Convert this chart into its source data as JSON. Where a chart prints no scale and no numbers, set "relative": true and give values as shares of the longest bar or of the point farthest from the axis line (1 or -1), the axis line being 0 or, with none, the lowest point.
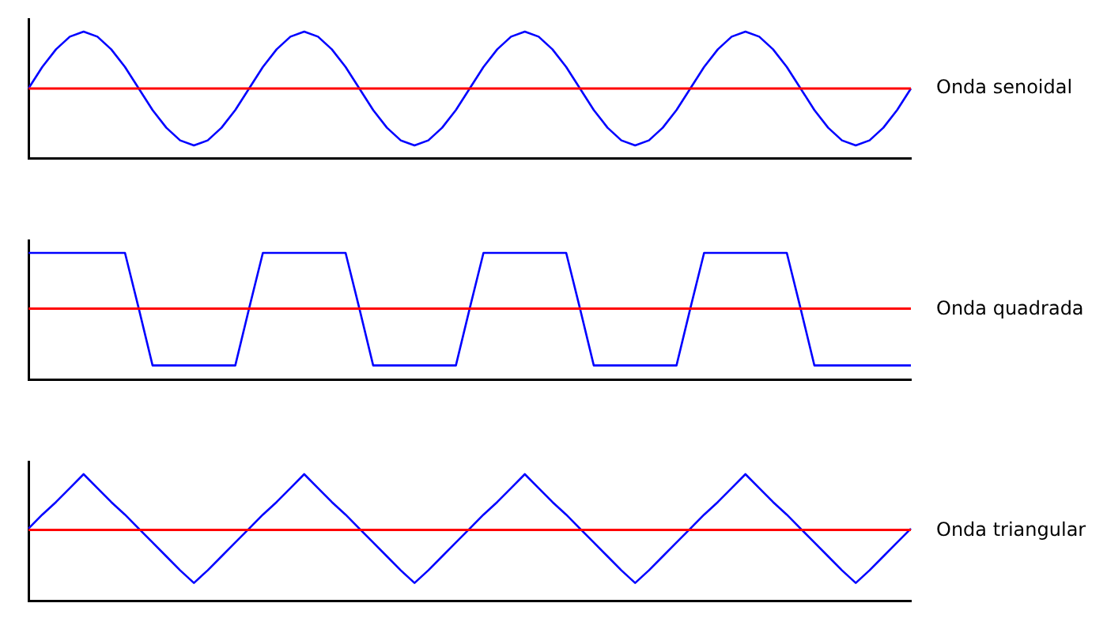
{
  "chart_data": [
    {
      "type": "line",
      "categories": [
        null,
        null,
        null,
        null,
        null,
        null,
        null,
        null,
        null,
        null,
        null,
        null,
        null,
        null,
        null,
        null,
        null,
        null,
        null,
        null,
        null,
        null,
        null,
        null,
        null,
        null,
        null,
        null,
        null,
        null,
        null,
        null,
        null,
        null,
        null,
        null,
        null,
        null,
        null,
        null,
        null,
        null,
        null,
        null,
        null,
        null,
        null,
        null,
        null,
        null,
        null,
        null,
        null,
        null,
        null,
        null,
        null,
        null,
        null,
        null,
        null,
        null,
        null,
        null,
        null
      ],
      "relative": true,
      "tick_labels": false,
      "marker": "none",
      "line_style": "solid",
      "series": [
        {
          "name": "Onda senoidal",
          "color": "#0000ff",
          "values": [
            0.55,
            0.72,
            0.86,
            0.96,
            1,
            0.96,
            0.86,
            0.72,
            0.55,
            0.38,
            0.24,
            0.14,
            0.1,
            0.14,
            0.24,
            0.38,
            0.55,
            0.72,
            0.86,
            0.96,
            1,
            0.96,
            0.86,
            0.72,
            0.55,
            0.38,
            0.24,
            0.14,
            0.1,
            0.14,
            0.24,
            0.38,
            0.55,
            0.72,
            0.86,
            0.96,
            1,
            0.96,
            0.86,
            0.72,
            0.55,
            0.38,
            0.24,
            0.14,
            0.1,
            0.14,
            0.24,
            0.38,
            0.55,
            0.72,
            0.86,
            0.96,
            1,
            0.96,
            0.86,
            0.72,
            0.55,
            0.38,
            0.24,
            0.14,
            0.1,
            0.14,
            0.24,
            0.38,
            0.55
          ]
        }
      ],
      "ref_lines": [
        {
          "axis": "y",
          "value": 0.55,
          "color": "#ff0000"
        }
      ]
    },
    {
      "type": "line",
      "categories": [
        null,
        null,
        null,
        null,
        null,
        null,
        null,
        null,
        null,
        null,
        null,
        null,
        null,
        null,
        null,
        null,
        null,
        null,
        null,
        null,
        null,
        null,
        null,
        null,
        null,
        null,
        null,
        null,
        null,
        null,
        null,
        null,
        null,
        null,
        null,
        null,
        null,
        null,
        null,
        null,
        null,
        null,
        null,
        null,
        null,
        null,
        null,
        null,
        null,
        null,
        null,
        null,
        null,
        null,
        null,
        null,
        null,
        null,
        null,
        null,
        null,
        null,
        null,
        null,
        null
      ],
      "relative": true,
      "tick_labels": false,
      "marker": "none",
      "line_style": "solid",
      "series": [
        {
          "name": "Onda quadrada",
          "color": "#0000ff",
          "values": [
            1,
            1,
            1,
            1,
            1,
            1,
            1,
            1,
            0.56,
            0.11,
            0.11,
            0.11,
            0.11,
            0.11,
            0.11,
            0.11,
            0.56,
            1,
            1,
            1,
            1,
            1,
            1,
            1,
            0.56,
            0.11,
            0.11,
            0.11,
            0.11,
            0.11,
            0.11,
            0.11,
            0.56,
            1,
            1,
            1,
            1,
            1,
            1,
            1,
            0.56,
            0.11,
            0.11,
            0.11,
            0.11,
            0.11,
            0.11,
            0.11,
            0.56,
            1,
            1,
            1,
            1,
            1,
            1,
            1,
            0.56,
            0.11,
            0.11,
            0.11,
            0.11,
            0.11,
            0.11,
            0.11,
            0.11
          ]
        }
      ],
      "ref_lines": [
        {
          "axis": "y",
          "value": 0.56,
          "color": "#ff0000"
        }
      ]
    },
    {
      "type": "line",
      "categories": [
        null,
        null,
        null,
        null,
        null,
        null,
        null,
        null,
        null,
        null,
        null,
        null,
        null,
        null,
        null,
        null,
        null,
        null,
        null,
        null,
        null,
        null,
        null,
        null,
        null,
        null,
        null,
        null,
        null,
        null,
        null,
        null,
        null,
        null,
        null,
        null,
        null,
        null,
        null,
        null,
        null,
        null,
        null,
        null,
        null,
        null,
        null,
        null,
        null,
        null,
        null,
        null,
        null,
        null,
        null,
        null,
        null,
        null,
        null,
        null,
        null,
        null,
        null,
        null,
        null
      ],
      "relative": true,
      "tick_labels": false,
      "marker": "none",
      "line_style": "solid",
      "series": [
        {
          "name": "Onda triangular",
          "color": "#0000ff",
          "values": [
            0.57,
            0.68,
            0.78,
            0.89,
            1,
            0.89,
            0.78,
            0.68,
            0.57,
            0.46,
            0.35,
            0.24,
            0.14,
            0.24,
            0.35,
            0.46,
            0.57,
            0.68,
            0.78,
            0.89,
            1,
            0.89,
            0.78,
            0.68,
            0.57,
            0.46,
            0.35,
            0.24,
            0.14,
            0.24,
            0.35,
            0.46,
            0.57,
            0.68,
            0.78,
            0.89,
            1,
            0.89,
            0.78,
            0.68,
            0.57,
            0.46,
            0.35,
            0.24,
            0.14,
            0.24,
            0.35,
            0.46,
            0.57,
            0.68,
            0.78,
            0.89,
            1,
            0.89,
            0.78,
            0.68,
            0.57,
            0.46,
            0.35,
            0.24,
            0.14,
            0.24,
            0.35,
            0.46,
            0.57
          ]
        }
      ],
      "ref_lines": [
        {
          "axis": "y",
          "value": 0.56,
          "color": "#ff0000"
        }
      ]
    }
  ]
}
